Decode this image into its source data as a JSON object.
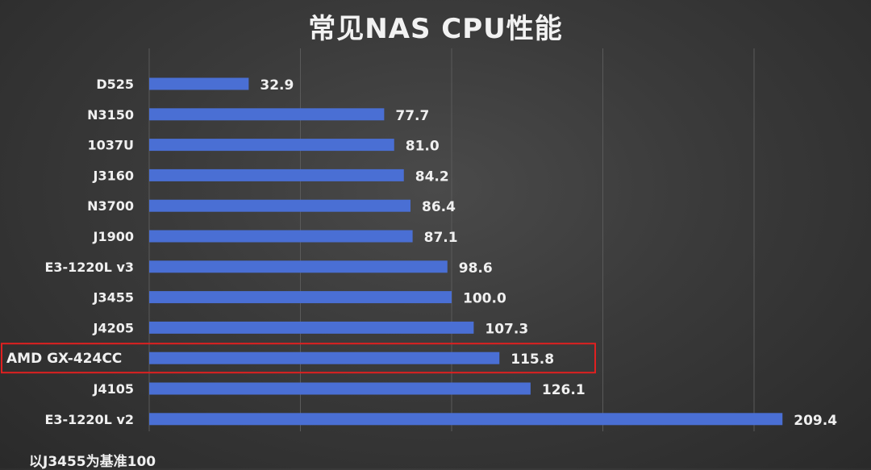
{
  "chart_data": {
    "type": "bar",
    "orientation": "horizontal",
    "title": "常见NAS  CPU性能",
    "categories": [
      "D525",
      "N3150",
      "1037U",
      "J3160",
      "N3700",
      "J1900",
      "E3-1220L v3",
      "J3455",
      "J4205",
      "AMD GX-424CC",
      "J4105",
      "E3-1220L v2"
    ],
    "values": [
      32.9,
      77.7,
      81.0,
      84.2,
      86.4,
      87.1,
      98.6,
      100.0,
      107.3,
      115.8,
      126.1,
      209.4
    ],
    "value_labels": [
      "32.9",
      "77.7",
      "81.0",
      "84.2",
      "86.4",
      "87.1",
      "98.6",
      "100.0",
      "107.3",
      "115.8",
      "126.1",
      "209.4"
    ],
    "highlighted_category": "AMD GX-424CC",
    "bar_color": "#4a6fd4",
    "highlight_color": "#e02020",
    "grid": true,
    "xlim": [
      0,
      250
    ],
    "footnote": "以J3455为基准100"
  }
}
